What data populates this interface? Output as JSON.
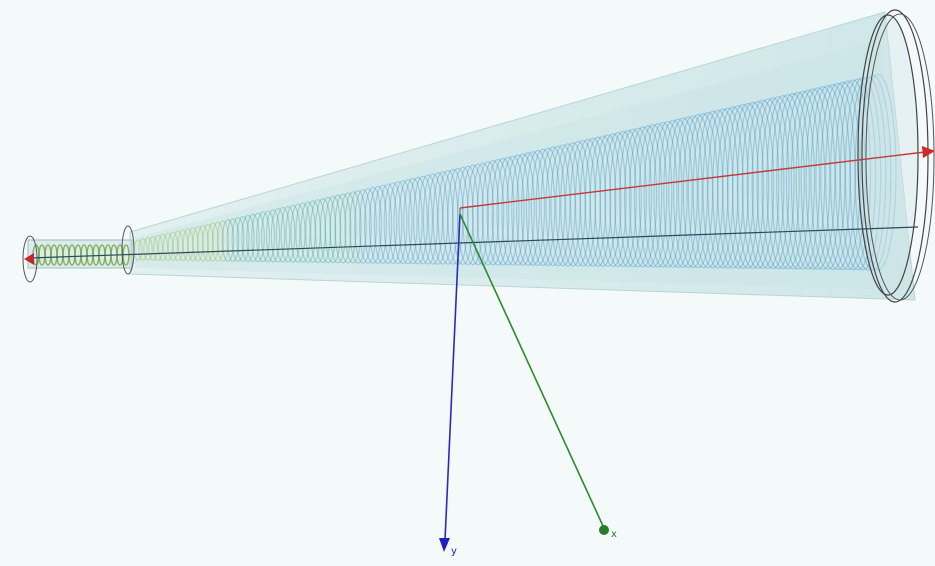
{
  "axes": {
    "blue_label": "y",
    "green_label": "x"
  }
}
